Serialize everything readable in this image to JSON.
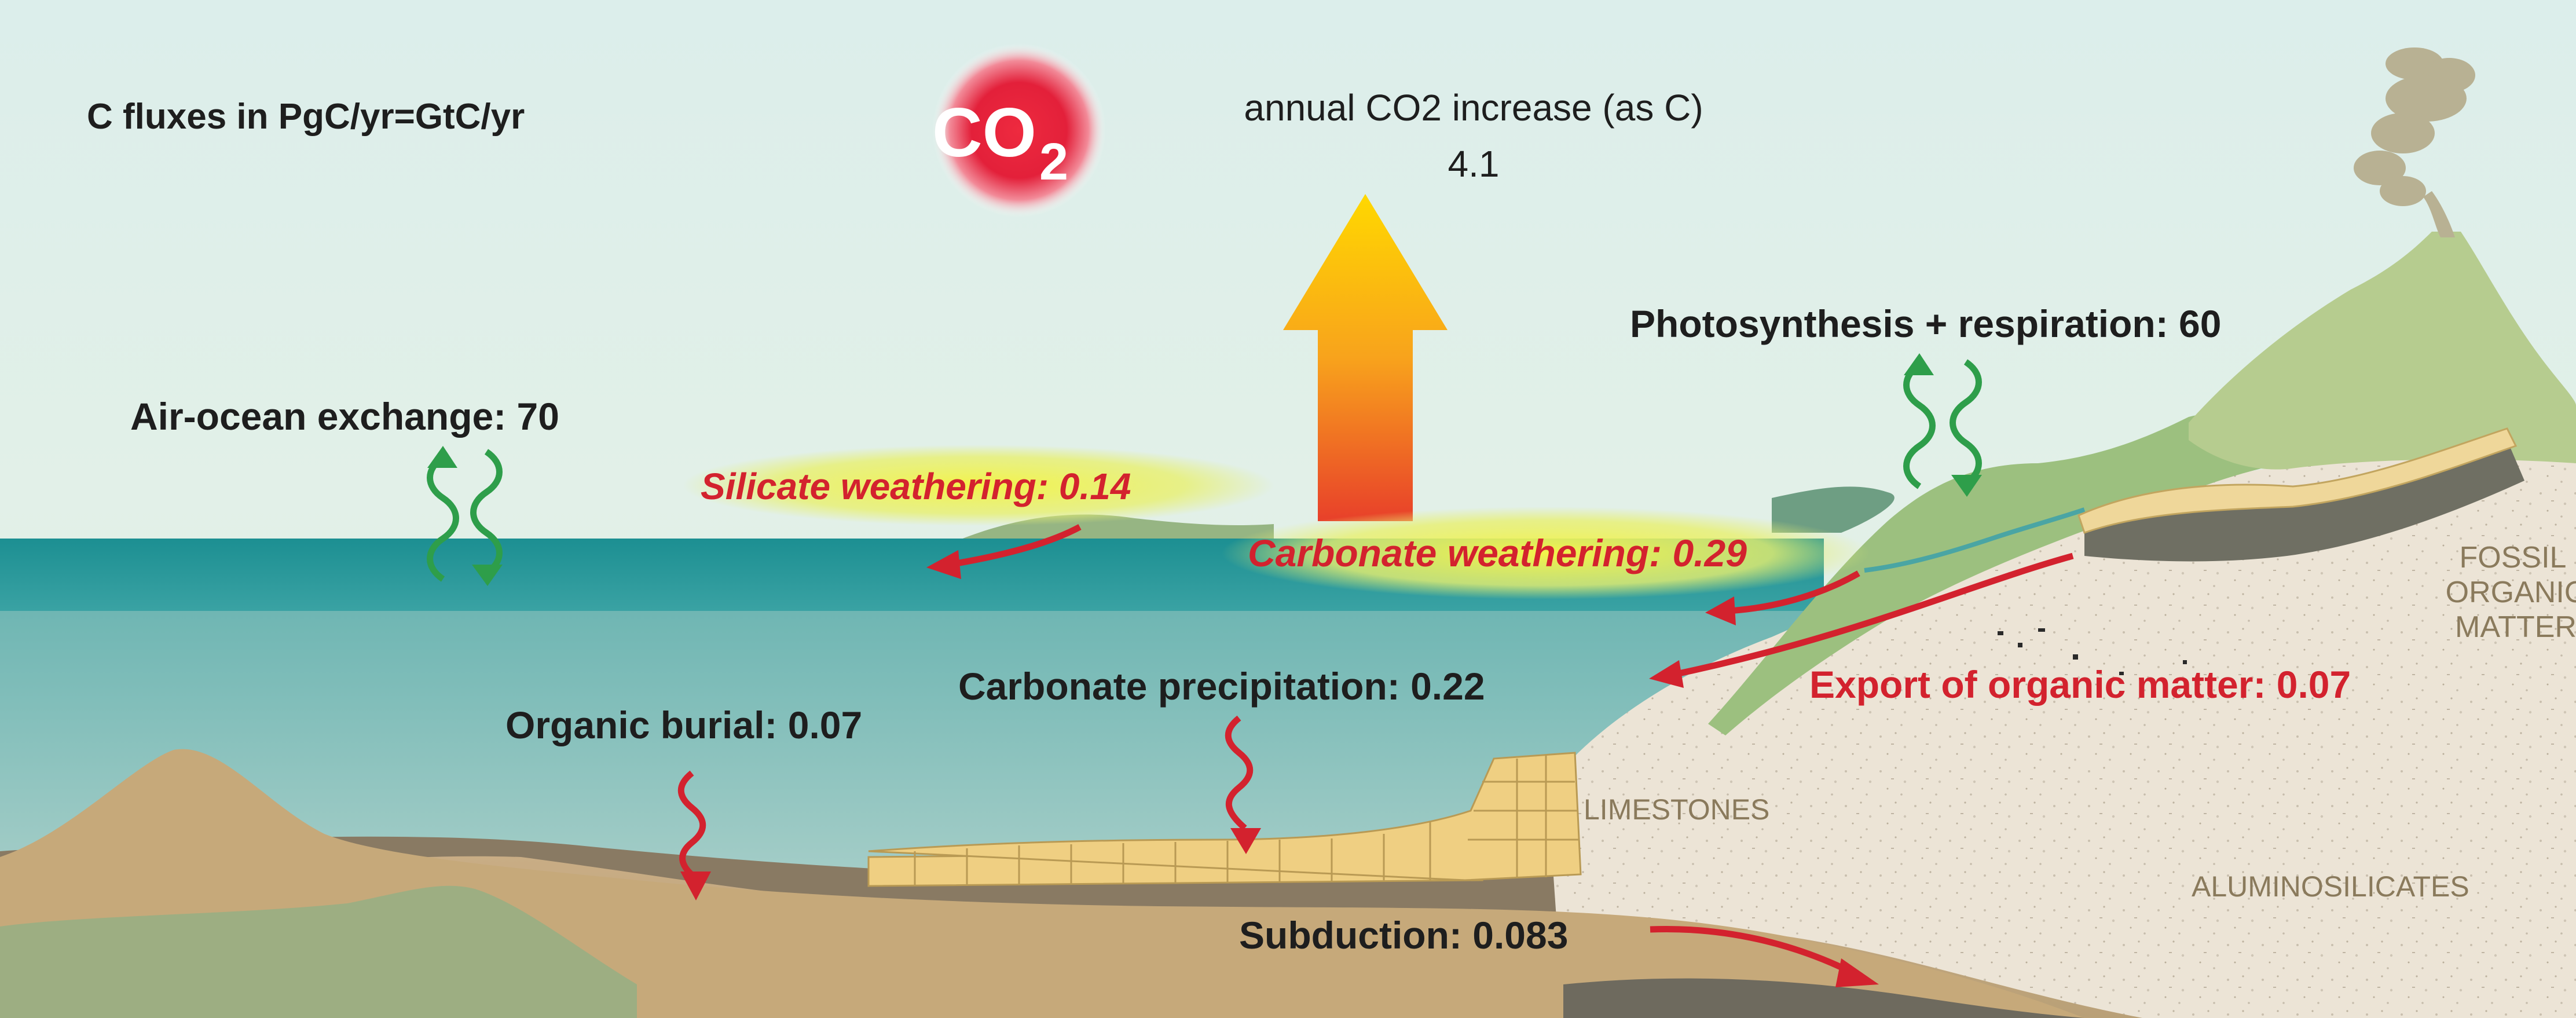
{
  "units_note": "C fluxes in PgC/yr=GtC/yr",
  "co2_badge": {
    "main": "CO",
    "sub": "2"
  },
  "annual_increase": {
    "label": "annual CO2 increase (as C)",
    "value": "4.1"
  },
  "fluxes": {
    "air_ocean": "Air-ocean exchange: 70",
    "photosynthesis": "Photosynthesis + respiration: 60",
    "silicate_weathering": "Silicate weathering: 0.14",
    "carbonate_weathering": "Carbonate weathering: 0.29",
    "carbonate_precipitation": "Carbonate precipitation: 0.22",
    "organic_burial": "Organic burial: 0.07",
    "export_organic": "Export of organic matter: 0.07",
    "subduction": "Subduction: 0.083"
  },
  "geology": {
    "fossil_1": "FOSSIL",
    "fossil_2": "ORGANIC",
    "fossil_3": "MATTER",
    "limestones": "LIMESTONES",
    "aluminosilicates": "ALUMINOSILICATES"
  },
  "colors": {
    "sky_top": "#d9ece8",
    "ocean": "#3d9ea0",
    "flux_red": "#d3222e",
    "exchange_green": "#2e9e4a",
    "co2_red": "#e41e3a",
    "arrow_yellow": "#ffd400"
  }
}
